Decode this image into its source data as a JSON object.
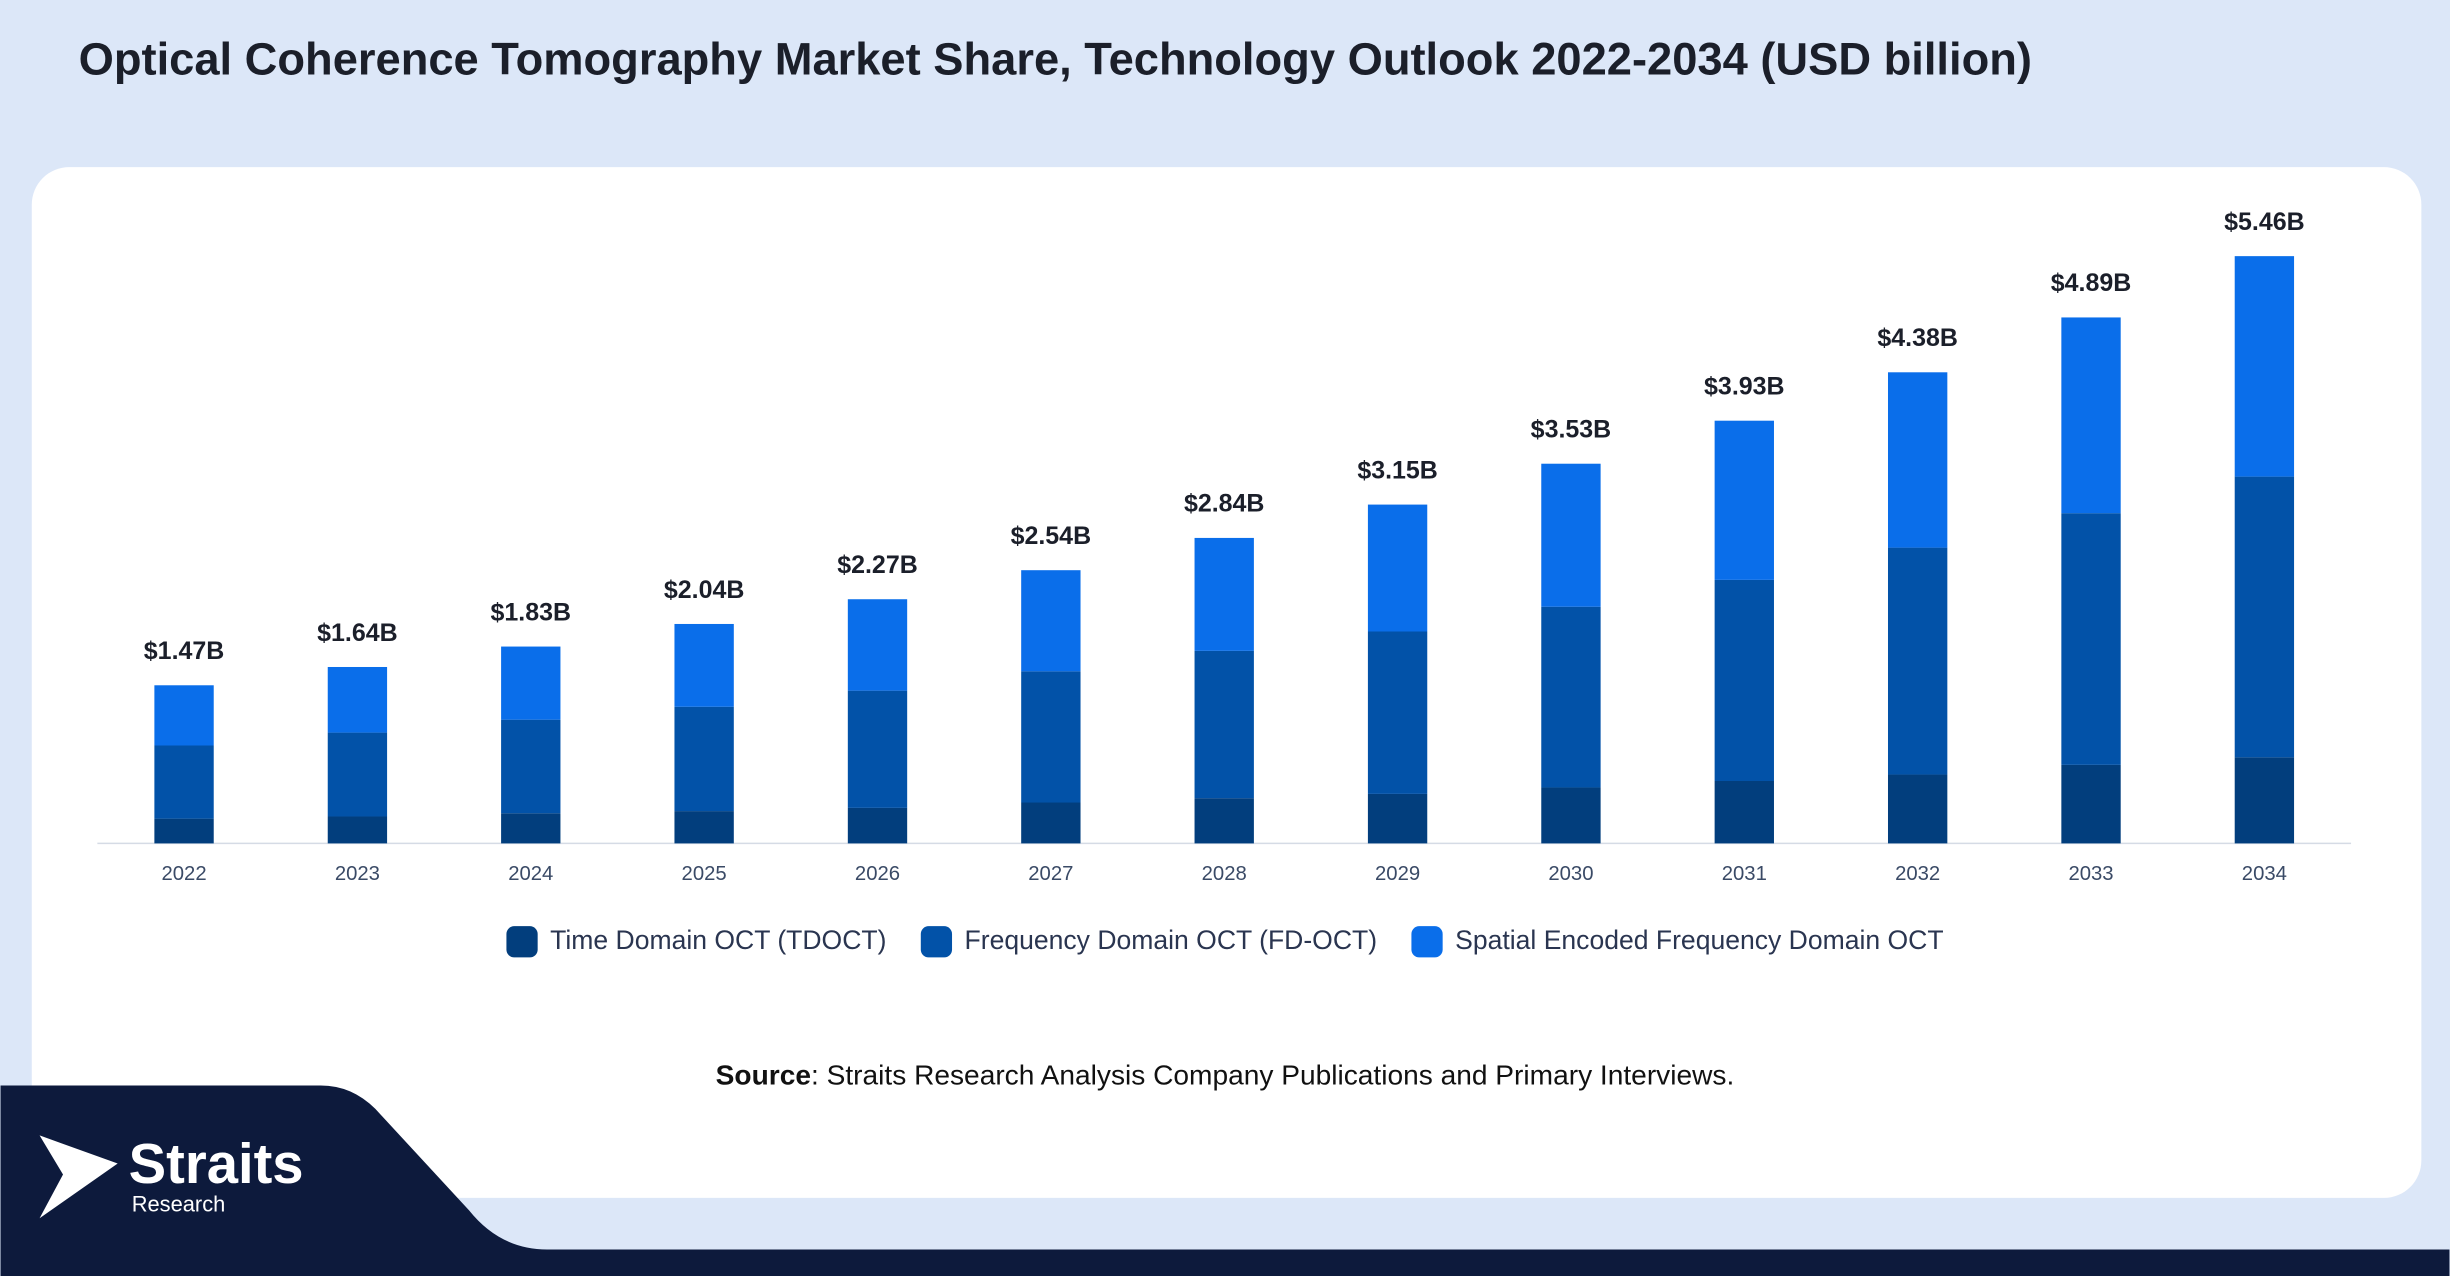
{
  "chart_data": {
    "type": "stacked-bar",
    "title": "Optical Coherence Tomography Market Share, Technology Outlook 2022-2034 (USD billion)",
    "categories": [
      "2022",
      "2023",
      "2024",
      "2025",
      "2026",
      "2027",
      "2028",
      "2029",
      "2030",
      "2031",
      "2032",
      "2033",
      "2034"
    ],
    "series": [
      {
        "name": "Time Domain OCT (TDOCT)",
        "color": "#023e7d",
        "values": [
          0.23,
          0.25,
          0.28,
          0.3,
          0.33,
          0.38,
          0.42,
          0.46,
          0.52,
          0.58,
          0.64,
          0.73,
          0.8
        ]
      },
      {
        "name": "Frequency Domain OCT (FD-OCT)",
        "color": "#0252a8",
        "values": [
          0.68,
          0.78,
          0.87,
          0.97,
          1.09,
          1.22,
          1.37,
          1.51,
          1.68,
          1.87,
          2.11,
          2.34,
          2.61
        ]
      },
      {
        "name": "Spatial Encoded Frequency Domain OCT",
        "color": "#0a6eea",
        "values": [
          0.56,
          0.61,
          0.68,
          0.77,
          0.85,
          0.94,
          1.05,
          1.18,
          1.33,
          1.48,
          1.63,
          1.82,
          2.05
        ]
      }
    ],
    "totals": {
      "values": [
        1.47,
        1.64,
        1.83,
        2.04,
        2.27,
        2.54,
        2.84,
        3.15,
        3.53,
        3.93,
        4.38,
        4.89,
        5.46
      ],
      "value_labels": [
        "$1.47B",
        "$1.64B",
        "$1.83B",
        "$2.04B",
        "$2.27B",
        "$2.54B",
        "$2.84B",
        "$3.15B",
        "$3.53B",
        "$3.93B",
        "$4.38B",
        "$4.89B",
        "$5.46B"
      ]
    },
    "legend": "bottom"
  },
  "source": {
    "label": "Source",
    "text": ": Straits Research Analysis Company Publications and Primary Interviews."
  },
  "logo": {
    "name": "Straits",
    "sub": "Research"
  }
}
